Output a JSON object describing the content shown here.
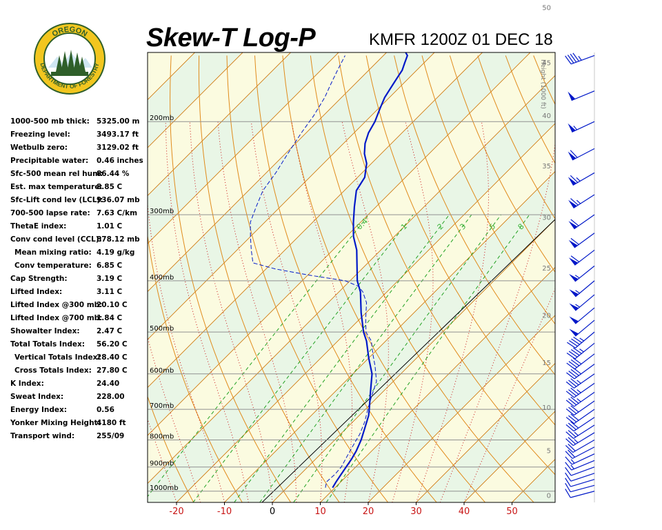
{
  "header": {
    "title": "Skew-T Log-P",
    "station": "KMFR 1200Z 01 DEC 18",
    "logo_text_top": "OREGON",
    "logo_text_bottom": "DEPARTMENT OF FORESTRY"
  },
  "indices": [
    {
      "label": "1000-500 mb thick:",
      "value": "5325.00 m"
    },
    {
      "label": "Freezing level:",
      "value": "3493.17 ft"
    },
    {
      "label": "Wetbulb zero:",
      "value": "3129.02 ft"
    },
    {
      "label": "Precipitable water:",
      "value": "0.46 inches"
    },
    {
      "label": "Sfc-500 mean rel hum:",
      "value": "86.44 %"
    },
    {
      "label": "Est. max temperature:",
      "value": "8.85 C"
    },
    {
      "label": "Sfc-Lift cond lev (LCL):",
      "value": "936.07 mb"
    },
    {
      "label": "700-500 lapse rate:",
      "value": "7.63 C/km"
    },
    {
      "label": "ThetaE index:",
      "value": "1.01 C"
    },
    {
      "label": "Conv cond level (CCL):",
      "value": "878.12 mb"
    },
    {
      "label": "Mean mixing ratio:",
      "value": "4.19 g/kg",
      "indent": true
    },
    {
      "label": "Conv temperature:",
      "value": "6.85 C",
      "indent": true
    },
    {
      "label": "Cap Strength:",
      "value": "3.19 C"
    },
    {
      "label": "Lifted Index:",
      "value": "3.11 C"
    },
    {
      "label": "Lifted Index @300 mb:",
      "value": "20.10 C"
    },
    {
      "label": "Lifted Index @700 mb:",
      "value": "1.84 C"
    },
    {
      "label": "Showalter Index:",
      "value": "2.47 C"
    },
    {
      "label": "Total Totals Index:",
      "value": "56.20 C"
    },
    {
      "label": "Vertical Totals Index:",
      "value": "28.40 C",
      "indent": true
    },
    {
      "label": "Cross Totals Index:",
      "value": "27.80 C",
      "indent": true
    },
    {
      "label": "K Index:",
      "value": "24.40"
    },
    {
      "label": "Sweat Index:",
      "value": "228.00"
    },
    {
      "label": "Energy Index:",
      "value": "0.56"
    },
    {
      "label": "Yonker Mixing Height:",
      "value": "4180 ft"
    },
    {
      "label": "Transport wind:",
      "value": "255/09"
    }
  ],
  "colors": {
    "temperature": "#0018c8",
    "dewpoint": "#0018c8",
    "dry_adiabat": "#e08a1a",
    "moist_adiabat": "#c81414",
    "mixing_ratio": "#20a020",
    "isotherm": "#d07a10",
    "band_green": "#e9f6e6",
    "band_yellow": "#fbfbe0",
    "isobar": "#909090"
  },
  "chart_data": {
    "type": "skew-t",
    "title": "Skew-T Log-P",
    "subtitle": "KMFR 1200Z 01 DEC 18",
    "xlabel": "",
    "ylabel": "",
    "x_ticks": [
      -20,
      -10,
      0,
      10,
      20,
      30,
      40,
      50
    ],
    "pressure_labels": [
      "200mb",
      "300mb",
      "400mb",
      "500mb",
      "600mb",
      "700mb",
      "800mb",
      "900mb",
      "1000mb"
    ],
    "pressure_levels": [
      200,
      300,
      400,
      500,
      600,
      700,
      800,
      900,
      1000
    ],
    "height_axis_label": "Height (1000 ft)",
    "height_ticks": [
      0,
      5,
      10,
      15,
      20,
      25,
      30,
      35,
      40,
      45,
      50
    ],
    "height_levels_mb": [
      1020,
      840,
      696,
      572,
      466,
      379,
      304,
      243,
      195,
      155,
      122
    ],
    "mixing_ratio_labels": [
      "0.4",
      "1",
      "2",
      "3",
      "5",
      "8"
    ],
    "mixing_ratio_values": [
      0.4,
      1,
      2,
      3,
      5,
      8
    ],
    "temperature_profile": [
      {
        "p": 985,
        "t": 9.5
      },
      {
        "p": 960,
        "t": 9.0
      },
      {
        "p": 930,
        "t": 8.5
      },
      {
        "p": 900,
        "t": 8.0
      },
      {
        "p": 870,
        "t": 7.5
      },
      {
        "p": 840,
        "t": 6.8
      },
      {
        "p": 800,
        "t": 5.5
      },
      {
        "p": 760,
        "t": 3.8
      },
      {
        "p": 720,
        "t": 2.0
      },
      {
        "p": 700,
        "t": 0.8
      },
      {
        "p": 650,
        "t": -2.5
      },
      {
        "p": 600,
        "t": -6.0
      },
      {
        "p": 560,
        "t": -10.0
      },
      {
        "p": 520,
        "t": -14.0
      },
      {
        "p": 500,
        "t": -16.5
      },
      {
        "p": 460,
        "t": -21.0
      },
      {
        "p": 420,
        "t": -25.5
      },
      {
        "p": 400,
        "t": -28.5
      },
      {
        "p": 380,
        "t": -31.0
      },
      {
        "p": 350,
        "t": -35.0
      },
      {
        "p": 330,
        "t": -38.5
      },
      {
        "p": 310,
        "t": -41.5
      },
      {
        "p": 290,
        "t": -44.5
      },
      {
        "p": 270,
        "t": -47.5
      },
      {
        "p": 255,
        "t": -48.5
      },
      {
        "p": 240,
        "t": -51.0
      },
      {
        "p": 230,
        "t": -53.5
      },
      {
        "p": 220,
        "t": -55.5
      },
      {
        "p": 210,
        "t": -57.0
      },
      {
        "p": 200,
        "t": -58.0
      },
      {
        "p": 190,
        "t": -59.5
      },
      {
        "p": 180,
        "t": -61.0
      },
      {
        "p": 170,
        "t": -62.0
      },
      {
        "p": 165,
        "t": -62.5
      },
      {
        "p": 160,
        "t": -63.0
      },
      {
        "p": 155,
        "t": -64.0
      },
      {
        "p": 150,
        "t": -65.0
      },
      {
        "p": 148,
        "t": -66.0
      }
    ],
    "dewpoint_profile": [
      {
        "p": 985,
        "t": 8.0
      },
      {
        "p": 960,
        "t": 7.0
      },
      {
        "p": 930,
        "t": 7.2
      },
      {
        "p": 900,
        "t": 7.0
      },
      {
        "p": 860,
        "t": 6.0
      },
      {
        "p": 820,
        "t": 5.0
      },
      {
        "p": 780,
        "t": 4.0
      },
      {
        "p": 740,
        "t": 2.5
      },
      {
        "p": 700,
        "t": 0.5
      },
      {
        "p": 660,
        "t": -1.5
      },
      {
        "p": 620,
        "t": -3.5
      },
      {
        "p": 580,
        "t": -7.0
      },
      {
        "p": 550,
        "t": -10.0
      },
      {
        "p": 520,
        "t": -13.0
      },
      {
        "p": 500,
        "t": -16.0
      },
      {
        "p": 470,
        "t": -19.0
      },
      {
        "p": 440,
        "t": -22.0
      },
      {
        "p": 420,
        "t": -25.0
      },
      {
        "p": 410,
        "t": -27.0
      },
      {
        "p": 400,
        "t": -31.0
      },
      {
        "p": 390,
        "t": -40.0
      },
      {
        "p": 380,
        "t": -48.0
      },
      {
        "p": 370,
        "t": -54.0
      },
      {
        "p": 350,
        "t": -57.0
      },
      {
        "p": 330,
        "t": -60.0
      },
      {
        "p": 310,
        "t": -63.0
      },
      {
        "p": 290,
        "t": -65.0
      },
      {
        "p": 270,
        "t": -67.0
      },
      {
        "p": 250,
        "t": -68.0
      },
      {
        "p": 230,
        "t": -69.5
      },
      {
        "p": 210,
        "t": -71.0
      },
      {
        "p": 195,
        "t": -72.0
      },
      {
        "p": 180,
        "t": -73.5
      },
      {
        "p": 170,
        "t": -75.0
      },
      {
        "p": 160,
        "t": -76.5
      },
      {
        "p": 150,
        "t": -78.0
      }
    ],
    "parcel_path": [
      {
        "p": 985,
        "t": 9.5
      },
      {
        "p": 936,
        "t": 5.2
      },
      {
        "p": 700,
        "t": -1.0
      },
      {
        "p": 500,
        "t": -19.6
      }
    ],
    "wind_profile": [
      {
        "p": 975,
        "dir": 255,
        "spd": 9
      },
      {
        "p": 900,
        "dir": 250,
        "spd": 10
      },
      {
        "p": 800,
        "dir": 240,
        "spd": 20
      },
      {
        "p": 700,
        "dir": 235,
        "spd": 30
      },
      {
        "p": 600,
        "dir": 235,
        "spd": 35
      },
      {
        "p": 500,
        "dir": 230,
        "spd": 45
      },
      {
        "p": 400,
        "dir": 230,
        "spd": 55
      },
      {
        "p": 300,
        "dir": 235,
        "spd": 60
      },
      {
        "p": 250,
        "dir": 240,
        "spd": 65
      },
      {
        "p": 200,
        "dir": 245,
        "spd": 55
      },
      {
        "p": 150,
        "dir": 250,
        "spd": 45
      }
    ]
  }
}
